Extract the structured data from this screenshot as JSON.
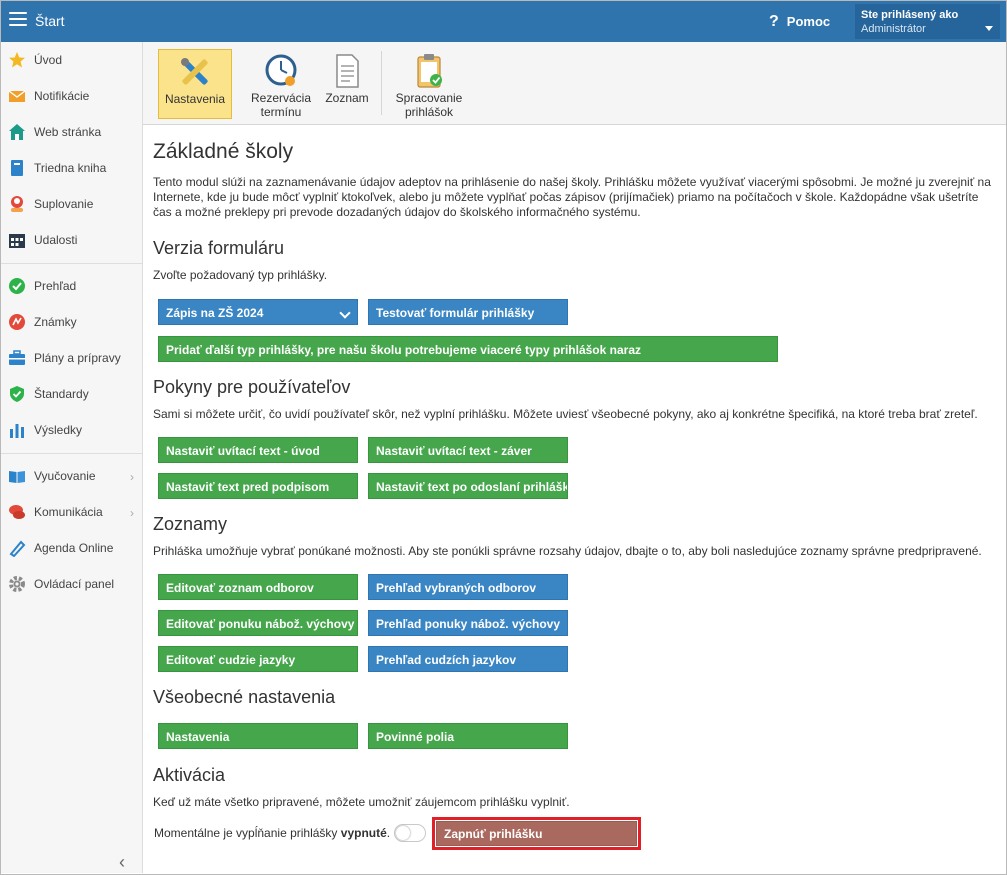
{
  "topbar": {
    "title": "Štart",
    "help_label": "Pomoc",
    "help_icon": "?",
    "user_label": "Ste prihlásený ako",
    "user_name": "Administrátor"
  },
  "sidebar": {
    "items": [
      {
        "label": "Úvod",
        "icon": "star-icon"
      },
      {
        "label": "Notifikácie",
        "icon": "envelope-icon"
      },
      {
        "label": "Web stránka",
        "icon": "home-icon"
      },
      {
        "label": "Triedna kniha",
        "icon": "book-icon"
      },
      {
        "label": "Suplovanie",
        "icon": "person-icon"
      },
      {
        "label": "Udalosti",
        "icon": "calendar-icon"
      },
      {
        "label": "Prehľad",
        "icon": "check-circle-icon"
      },
      {
        "label": "Známky",
        "icon": "grade-icon"
      },
      {
        "label": "Plány a prípravy",
        "icon": "briefcase-icon"
      },
      {
        "label": "Štandardy",
        "icon": "shield-check-icon"
      },
      {
        "label": "Výsledky",
        "icon": "bar-chart-icon"
      },
      {
        "label": "Vyučovanie",
        "icon": "open-book-icon"
      },
      {
        "label": "Komunikácia",
        "icon": "chat-icon"
      },
      {
        "label": "Agenda Online",
        "icon": "pen-icon"
      },
      {
        "label": "Ovládací panel",
        "icon": "gear-icon"
      }
    ],
    "collapse_glyph": "‹"
  },
  "toolbar": {
    "tools": [
      {
        "label": "Nastavenia",
        "icon": "tools-icon",
        "active": true
      },
      {
        "label": "Rezervácia termínu",
        "line1": "Rezervácia",
        "line2": "termínu",
        "icon": "clock-icon"
      },
      {
        "label": "Zoznam",
        "icon": "document-icon"
      },
      {
        "label": "Spracovanie prihlášok",
        "line1": "Spracovanie",
        "line2": "prihlášok",
        "icon": "clipboard-icon"
      }
    ]
  },
  "main": {
    "title": "Základné školy",
    "intro": "Tento modul slúži na zaznamenávanie údajov adeptov na prihlásenie do našej školy. Prihlášku môžete využívať viacerými spôsobmi. Je možné ju zverejniť na Internete, kde ju bude môcť vyplniť ktokoľvek, alebo ju môžete vyplňať počas zápisov (prijímačiek) priamo na počítačoch v škole. Každopádne však ušetríte čas a možné preklepy pri prevode dozadaných údajov do školského informačného systému.",
    "form_version": {
      "heading": "Verzia formuláru",
      "text": "Zvoľte požadovaný typ prihlášky.",
      "select_value": "Zápis na ZŠ 2024",
      "test_button": "Testovať formulár prihlášky",
      "add_button": "Pridať ďalší typ prihlášky, pre našu školu potrebujeme viaceré typy prihlášok naraz"
    },
    "instructions": {
      "heading": "Pokyny pre používateľov",
      "text": "Sami si môžete určiť, čo uvidí používateľ skôr, než vyplní prihlášku. Môžete uviesť všeobecné pokyny, ako aj konkrétne špecifiká, na ktoré treba brať zreteľ.",
      "buttons": [
        "Nastaviť uvítací text - úvod",
        "Nastaviť uvítací text - záver",
        "Nastaviť text pred podpisom",
        "Nastaviť text po odoslaní prihlášky"
      ]
    },
    "lists": {
      "heading": "Zoznamy",
      "text": "Prihláška umožňuje vybrať ponúkané možnosti. Aby ste ponúkli správne rozsahy údajov, dbajte o to, aby boli nasledujúce zoznamy správne predpripravené.",
      "edit_buttons": [
        "Editovať zoznam odborov",
        "Editovať ponuku nábož. výchovy",
        "Editovať cudzie jazyky"
      ],
      "view_buttons": [
        "Prehľad vybraných odborov",
        "Prehľad ponuky nábož. výchovy",
        "Prehľad cudzích jazykov"
      ]
    },
    "general": {
      "heading": "Všeobecné nastavenia",
      "buttons": [
        "Nastavenia",
        "Povinné polia"
      ]
    },
    "activation": {
      "heading": "Aktivácia",
      "text": "Keď už máte všetko pripravené, môžete umožniť záujemcom prihlášku vyplniť.",
      "status_prefix": "Momentálne je vypĺňanie prihlášky",
      "status_value": "vypnuté",
      "status_suffix": ".",
      "enable_button": "Zapnúť prihlášku"
    }
  },
  "colors": {
    "topbar": "#2f74ad",
    "green": "#45a64c",
    "blue": "#3a86c4",
    "highlight": "#e01f26",
    "enable_button": "#a9695f"
  }
}
